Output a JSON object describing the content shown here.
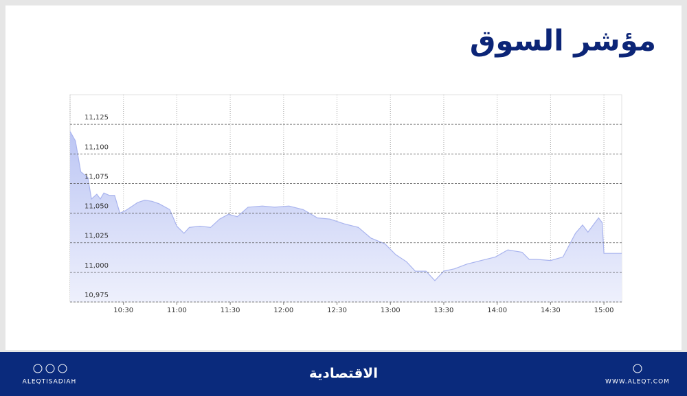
{
  "chart_data": {
    "type": "area",
    "title": "مؤشر السوق",
    "x": [
      600,
      603,
      606,
      610,
      612,
      615,
      617,
      619,
      622,
      625,
      628,
      631,
      635,
      638,
      642,
      646,
      650,
      656,
      660,
      664,
      667,
      673,
      679,
      684,
      689,
      694,
      700,
      708,
      715,
      723,
      731,
      739,
      746,
      754,
      762,
      769,
      777,
      783,
      789,
      794,
      800,
      805,
      810,
      816,
      823,
      831,
      839,
      846,
      854,
      858,
      862,
      870,
      877,
      884,
      888,
      891,
      895,
      897,
      899,
      900,
      910
    ],
    "series": [
      {
        "color": "#a9b4ee",
        "values": [
          11119,
          11111,
          11085,
          11080,
          11062,
          11066,
          11062,
          11067,
          11065,
          11065,
          11050,
          11052,
          11056,
          11059,
          11061,
          11060,
          11058,
          11053,
          11039,
          11033,
          11038,
          11039,
          11038,
          11045,
          11049,
          11047,
          11055,
          11056,
          11055,
          11056,
          11053,
          11046,
          11045,
          11041,
          11038,
          11029,
          11024,
          11015,
          11009,
          11001,
          11001,
          10993,
          11001,
          11003,
          11007,
          11010,
          11013,
          11019,
          11017,
          11011,
          11011,
          11010,
          11013,
          11033,
          11040,
          11034,
          11042,
          11046,
          11042,
          11016,
          11016
        ]
      }
    ],
    "xlim": [
      600,
      910
    ],
    "xticks": [
      {
        "value": 630,
        "label": "10:30"
      },
      {
        "value": 660,
        "label": "11:00"
      },
      {
        "value": 690,
        "label": "11:30"
      },
      {
        "value": 720,
        "label": "12:00"
      },
      {
        "value": 750,
        "label": "12:30"
      },
      {
        "value": 780,
        "label": "13:00"
      },
      {
        "value": 810,
        "label": "13:30"
      },
      {
        "value": 840,
        "label": "14:00"
      },
      {
        "value": 870,
        "label": "14:30"
      },
      {
        "value": 900,
        "label": "15:00"
      }
    ],
    "ylim": [
      10975,
      11150
    ],
    "yticks": [
      {
        "value": 10975,
        "label": "10,975"
      },
      {
        "value": 11000,
        "label": "11,000"
      },
      {
        "value": 11025,
        "label": "11,025"
      },
      {
        "value": 11050,
        "label": "11,050"
      },
      {
        "value": 11075,
        "label": "11,075"
      },
      {
        "value": 11100,
        "label": "11,100"
      },
      {
        "value": 11125,
        "label": "11,125"
      }
    ],
    "grid": true
  },
  "footer": {
    "handle": "ALEQTISADIAH",
    "logo": "الاقتصادية",
    "website": "WWW.ALEQT.COM"
  }
}
